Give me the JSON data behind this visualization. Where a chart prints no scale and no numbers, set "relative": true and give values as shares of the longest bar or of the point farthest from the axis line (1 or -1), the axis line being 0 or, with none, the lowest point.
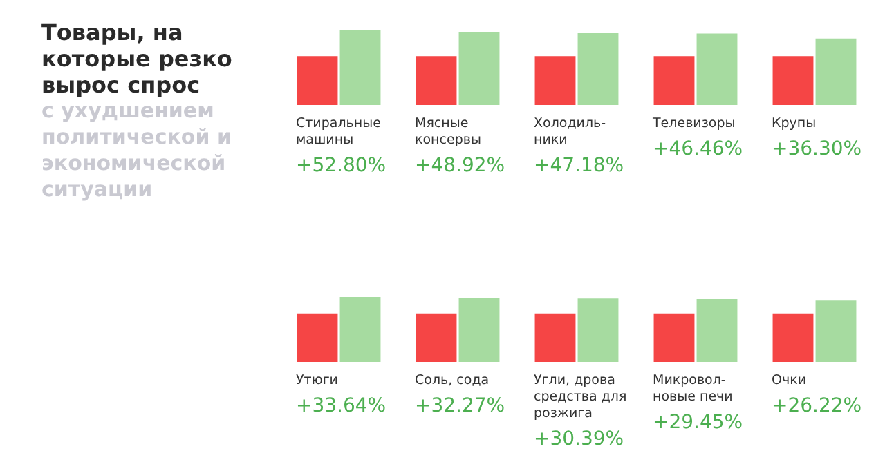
{
  "chart_data": [
    {
      "type": "other",
      "title": "Товары, на которые резко вырос спрос",
      "subtitle": "с ухудшением политической и экономической ситуации"
    },
    {
      "type": "bar",
      "relative": true,
      "categories": [
        "Стиральные\nмашины",
        "Мясные\nконсервы",
        "Холодиль-\nники",
        "Телевизоры",
        "Крупы"
      ],
      "series": [
        {
          "color": "#f54545",
          "values": [
            0.654,
            0.654,
            0.654,
            0.654,
            0.654
          ]
        },
        {
          "color": "#a6dba0",
          "values": [
            1.0,
            0.974,
            0.963,
            0.958,
            0.892
          ]
        }
      ],
      "annotations": [
        "+52.80%",
        "+48.92%",
        "+47.18%",
        "+46.46%",
        "+36.30%"
      ]
    },
    {
      "type": "bar",
      "relative": true,
      "categories": [
        "Утюги",
        "Соль, сода",
        "Угли, дрова\nсредства для\nрозжига",
        "Микровол-\nновые печи",
        "Очки"
      ],
      "series": [
        {
          "color": "#f54545",
          "values": [
            0.748,
            0.748,
            0.748,
            0.748,
            0.748
          ]
        },
        {
          "color": "#a6dba0",
          "values": [
            1.0,
            0.99,
            0.976,
            0.969,
            0.945
          ]
        }
      ],
      "annotations": [
        "+33.64%",
        "+32.27%",
        "+30.39%",
        "+29.45%",
        "+26.22%"
      ]
    }
  ]
}
